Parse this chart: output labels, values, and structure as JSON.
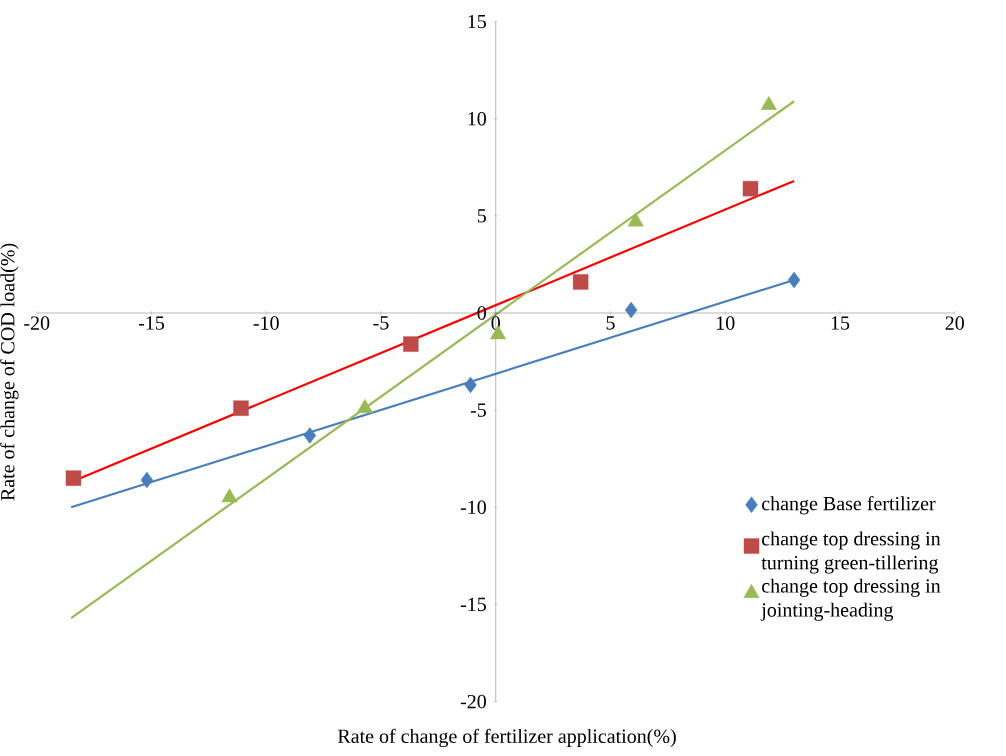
{
  "chart_data": {
    "type": "scatter",
    "xlabel": "Rate of change of fertilizer application(%)",
    "ylabel": "Rate of change of COD load(%)",
    "xlim": [
      -20,
      20
    ],
    "xticks": [
      -20,
      -15,
      -10,
      -5,
      0,
      5,
      10,
      15,
      20
    ],
    "ylim": [
      -20,
      15
    ],
    "yticks": [
      -20,
      -15,
      -10,
      -5,
      0,
      5,
      10,
      15
    ],
    "grid": false,
    "legend": "right",
    "series": [
      {
        "name": "change Base fertilizer",
        "color": "#4a7ebb",
        "marker": "diamond",
        "x": [
          -15.2,
          -8.1,
          -1.1,
          5.9,
          13.0
        ],
        "values": [
          -8.6,
          -6.3,
          -3.7,
          0.15,
          1.7
        ]
      },
      {
        "name": "change top dressing in turning green-tillering",
        "color": "#be4b48",
        "marker": "square",
        "x": [
          -18.4,
          -11.1,
          -3.7,
          3.7,
          11.1
        ],
        "values": [
          -8.5,
          -4.9,
          -1.6,
          1.6,
          6.4
        ]
      },
      {
        "name": "change top dressing in jointing-heading",
        "color": "#98b954",
        "marker": "triangle",
        "x": [
          -11.6,
          -5.7,
          0.1,
          6.1,
          11.9
        ],
        "values": [
          -9.5,
          -4.9,
          -1.1,
          4.7,
          10.7
        ]
      },
      {
        "type": "line",
        "color": "#4a7ebb",
        "marker": "none",
        "x": [
          -18.5,
          13.0
        ],
        "values": [
          -10.0,
          1.7
        ]
      },
      {
        "type": "line",
        "color": "#ff0000",
        "marker": "none",
        "x": [
          -18.5,
          13.0
        ],
        "values": [
          -8.7,
          6.8
        ]
      },
      {
        "type": "line",
        "color": "#98b954",
        "marker": "none",
        "x": [
          -18.5,
          13.0
        ],
        "values": [
          -15.7,
          10.9
        ]
      }
    ]
  }
}
